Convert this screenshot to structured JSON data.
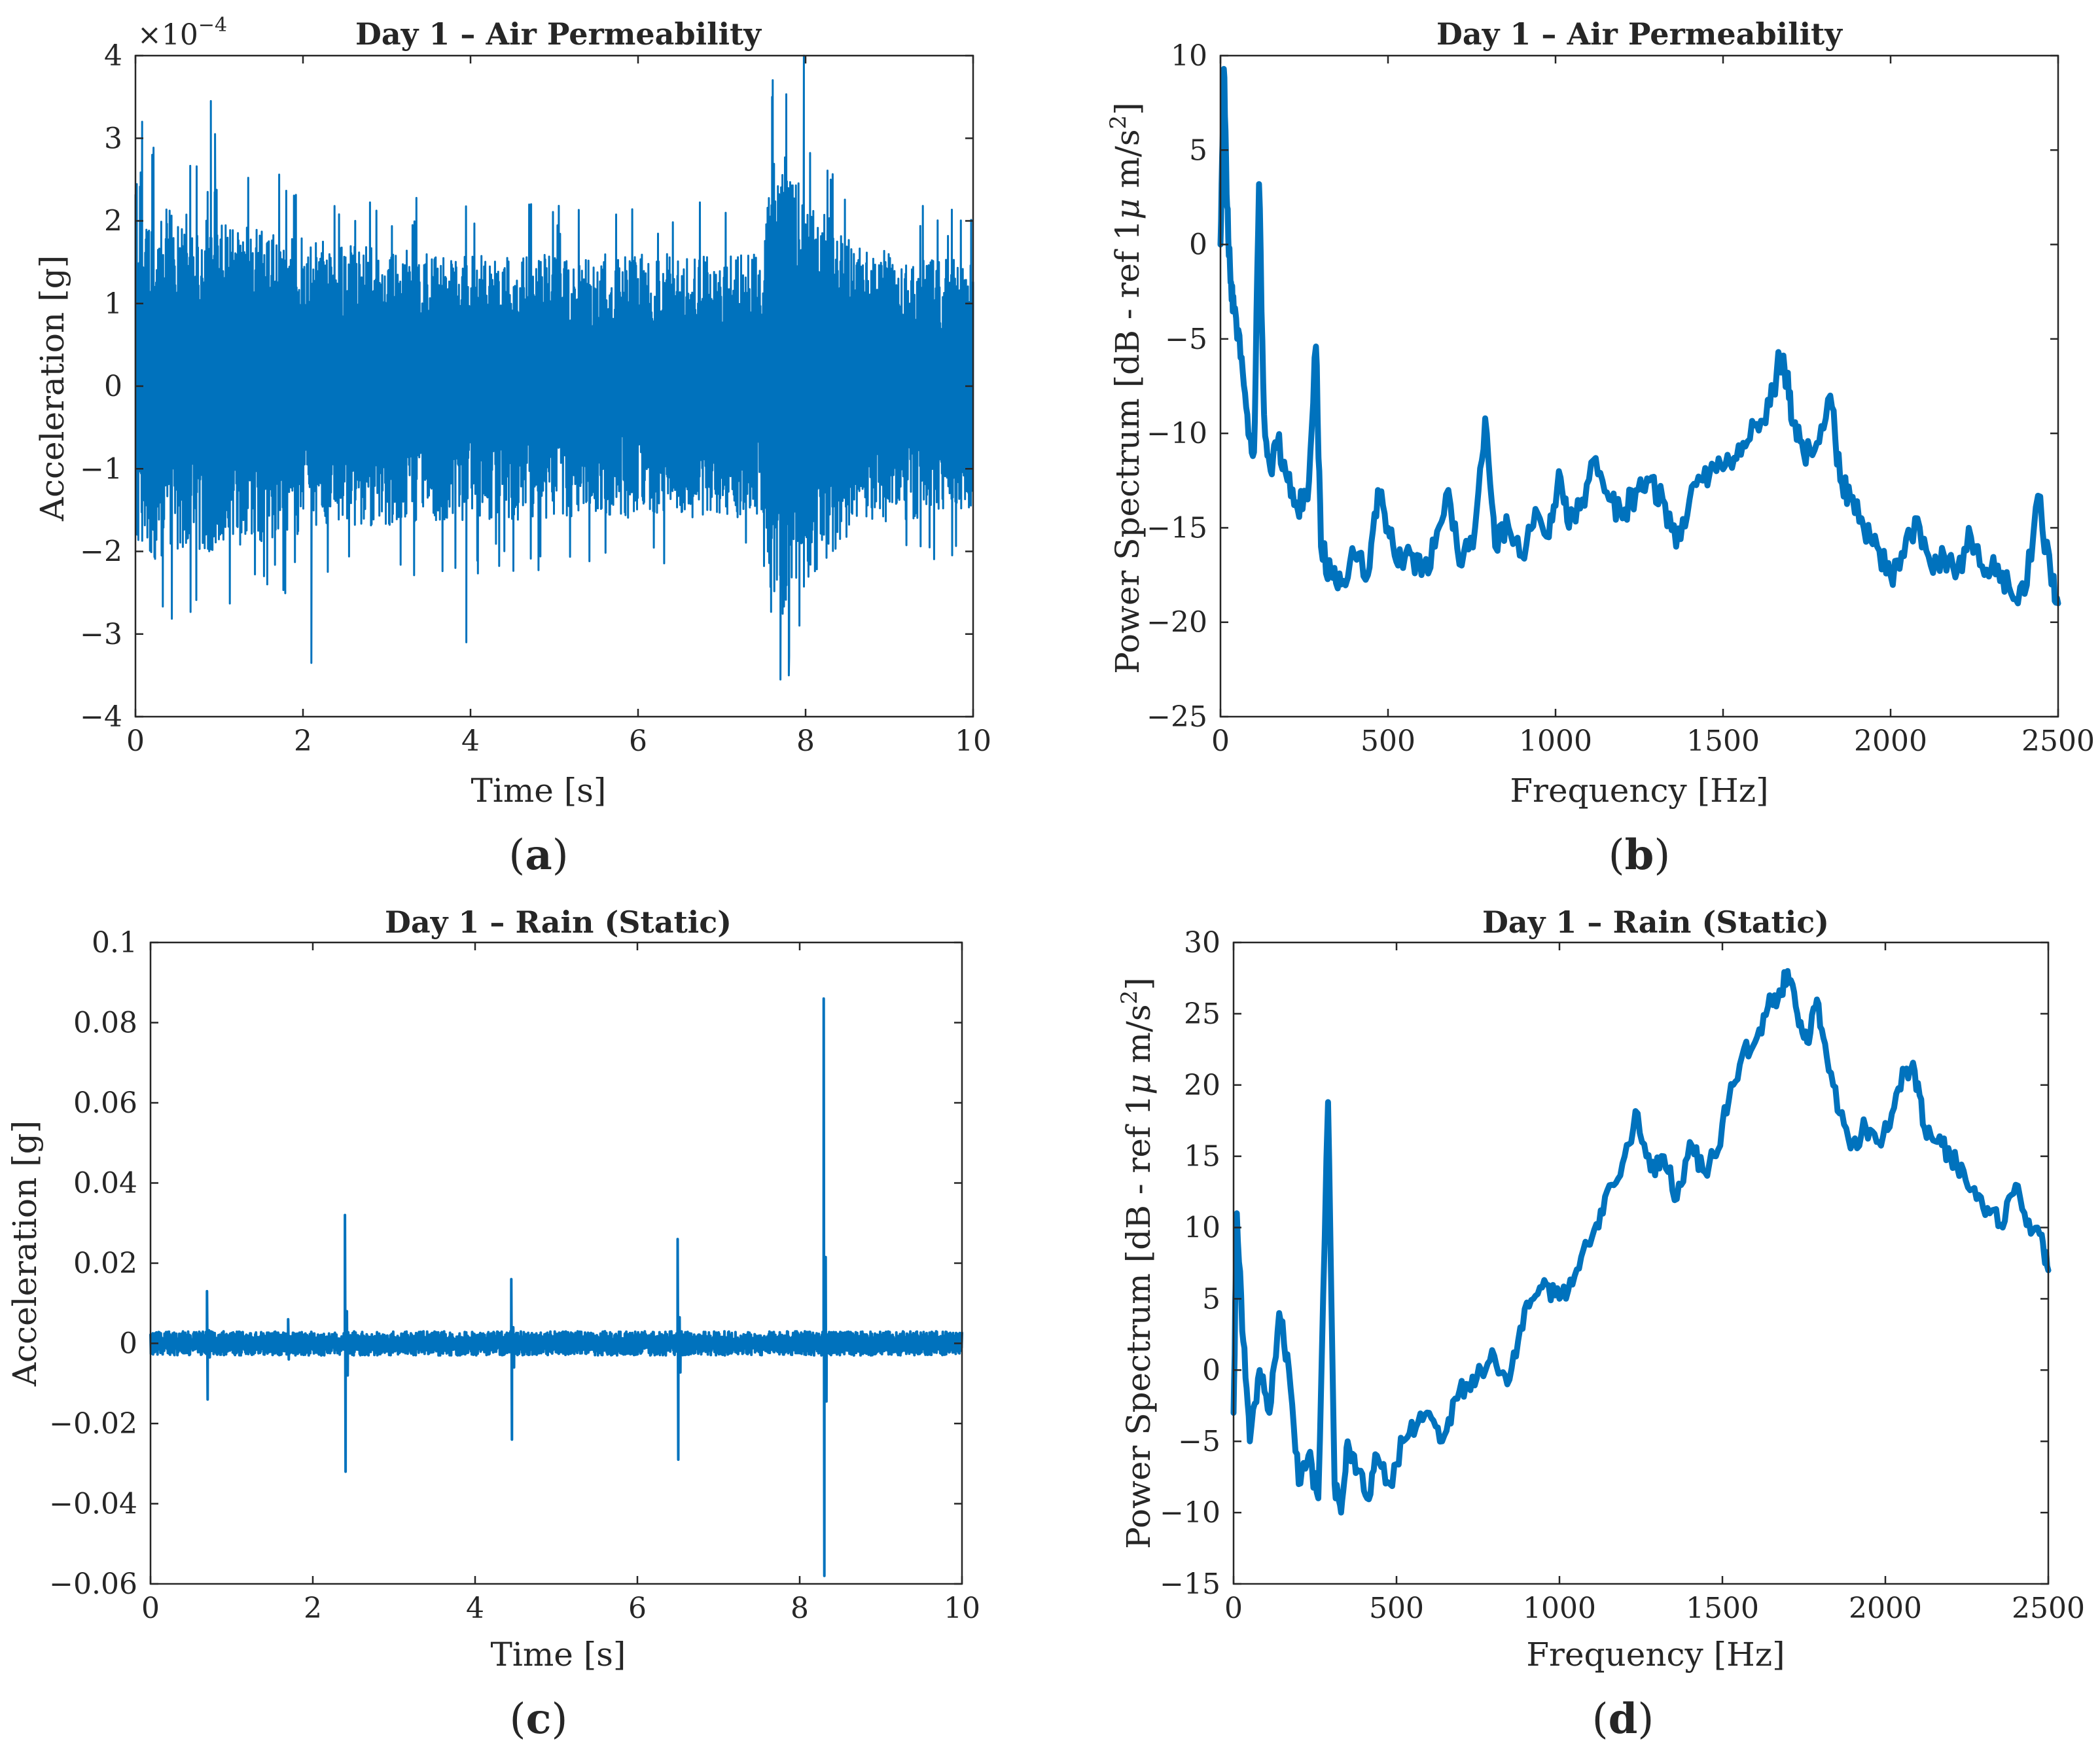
{
  "colors": {
    "series": "#0072BD",
    "axis": "#262626",
    "background": "#ffffff"
  },
  "chart_data": [
    {
      "id": "a",
      "type": "line",
      "panel_label": "a",
      "title": "Day 1 – Air Permeability",
      "xlabel": "Time [s]",
      "ylabel": "Acceleration [g]",
      "y_exponent_prefix": "×10",
      "y_exponent": "−4",
      "xlim": [
        0,
        10
      ],
      "ylim": [
        -4,
        4
      ],
      "xticks": [
        0,
        2,
        4,
        6,
        8,
        10
      ],
      "xtick_labels": [
        "0",
        "2",
        "4",
        "6",
        "8",
        "10"
      ],
      "yticks": [
        -4,
        -3,
        -2,
        -1,
        0,
        1,
        2,
        3,
        4
      ],
      "ytick_labels": [
        "−4",
        "−3",
        "−2",
        "−1",
        "0",
        "1",
        "2",
        "3",
        "4"
      ],
      "series": [
        {
          "name": "acceleration",
          "envelope": [
            [
              0,
              1.8
            ],
            [
              0.2,
              2.2
            ],
            [
              0.9,
              2.0
            ],
            [
              2.5,
              1.7
            ],
            [
              5.0,
              1.6
            ],
            [
              7.5,
              1.6
            ],
            [
              7.6,
              3.0
            ],
            [
              8.0,
              2.4
            ],
            [
              8.6,
              1.7
            ],
            [
              10,
              1.5
            ]
          ],
          "peaks": [
            [
              0.08,
              3.2
            ],
            [
              0.2,
              2.8
            ],
            [
              0.9,
              3.45
            ],
            [
              0.95,
              3.05
            ],
            [
              2.1,
              -3.35
            ],
            [
              3.95,
              -3.1
            ],
            [
              7.6,
              3.5
            ],
            [
              7.7,
              -3.55
            ],
            [
              7.8,
              -3.5
            ],
            [
              7.98,
              4.0
            ],
            [
              8.3,
              2.5
            ]
          ]
        }
      ]
    },
    {
      "id": "b",
      "type": "line",
      "panel_label": "b",
      "title": "Day 1 – Air Permeability",
      "xlabel": "Frequency [Hz]",
      "ylabel": "Power Spectrum [dB - ref 1μ m/s²]",
      "ylabel_parts": [
        "Power Spectrum [dB - ref 1",
        "μ",
        " m/s",
        "2",
        "]"
      ],
      "xlim": [
        0,
        2500
      ],
      "ylim": [
        -25,
        10
      ],
      "xticks": [
        0,
        500,
        1000,
        1500,
        2000,
        2500
      ],
      "xtick_labels": [
        "0",
        "500",
        "1000",
        "1500",
        "2000",
        "2500"
      ],
      "yticks": [
        -25,
        -20,
        -15,
        -10,
        -5,
        0,
        5,
        10
      ],
      "ytick_labels": [
        "−25",
        "−20",
        "−15",
        "−10",
        "−5",
        "0",
        "5",
        "10"
      ],
      "series": [
        {
          "name": "power spectrum",
          "x": [
            0,
            10,
            20,
            30,
            40,
            60,
            80,
            100,
            115,
            130,
            150,
            170,
            200,
            230,
            260,
            285,
            300,
            330,
            360,
            400,
            440,
            470,
            500,
            530,
            560,
            600,
            640,
            680,
            720,
            760,
            790,
            820,
            860,
            900,
            940,
            980,
            1010,
            1040,
            1080,
            1120,
            1160,
            1200,
            1240,
            1280,
            1320,
            1360,
            1400,
            1440,
            1480,
            1520,
            1560,
            1600,
            1640,
            1670,
            1690,
            1710,
            1740,
            1780,
            1820,
            1850,
            1880,
            1920,
            1960,
            2000,
            2040,
            2080,
            2120,
            2160,
            2200,
            2240,
            2280,
            2320,
            2360,
            2400,
            2440,
            2480,
            2500
          ],
          "y": [
            0,
            9.3,
            2,
            -2,
            -3.5,
            -6,
            -9,
            -11,
            3.2,
            -9,
            -12,
            -10.5,
            -12.5,
            -14,
            -13.5,
            -5.4,
            -16,
            -17.5,
            -18,
            -16.5,
            -17.5,
            -13,
            -15,
            -17,
            -16,
            -17.5,
            -16,
            -13,
            -17,
            -15,
            -9.2,
            -16,
            -15,
            -16.5,
            -14,
            -15.5,
            -12,
            -15,
            -13.5,
            -11.3,
            -13.5,
            -14.5,
            -13,
            -12.5,
            -13.5,
            -16,
            -13.5,
            -12.5,
            -12,
            -11.5,
            -10.5,
            -9.5,
            -8.5,
            -6,
            -7,
            -9.5,
            -11,
            -10.5,
            -8,
            -12.5,
            -13.5,
            -15,
            -16,
            -17.5,
            -16.5,
            -14.5,
            -17,
            -16.5,
            -17.2,
            -15.5,
            -17.5,
            -17,
            -18.5,
            -18.5,
            -13.3,
            -18,
            -19
          ]
        }
      ]
    },
    {
      "id": "c",
      "type": "line",
      "panel_label": "c",
      "title": "Day 1 – Rain (Static)",
      "xlabel": "Time [s]",
      "ylabel": "Acceleration [g]",
      "xlim": [
        0,
        10
      ],
      "ylim": [
        -0.06,
        0.1
      ],
      "xticks": [
        0,
        2,
        4,
        6,
        8,
        10
      ],
      "xtick_labels": [
        "0",
        "2",
        "4",
        "6",
        "8",
        "10"
      ],
      "yticks": [
        -0.06,
        -0.04,
        -0.02,
        0,
        0.02,
        0.04,
        0.06,
        0.08,
        0.1
      ],
      "ytick_labels": [
        "−0.06",
        "−0.04",
        "−0.02",
        "0",
        "0.02",
        "0.04",
        "0.06",
        "0.08",
        "0.1"
      ],
      "series": [
        {
          "name": "acceleration",
          "noise_level": 0.0025,
          "spikes": [
            [
              0.7,
              0.013,
              -0.014
            ],
            [
              1.7,
              0.006,
              -0.004
            ],
            [
              2.4,
              0.032,
              -0.032
            ],
            [
              4.45,
              0.016,
              -0.024
            ],
            [
              6.5,
              0.026,
              -0.029
            ],
            [
              8.3,
              0.086,
              -0.058
            ]
          ]
        }
      ]
    },
    {
      "id": "d",
      "type": "line",
      "panel_label": "d",
      "title": "Day 1 – Rain (Static)",
      "xlabel": "Frequency [Hz]",
      "ylabel": "Power Spectrum [dB - ref 1μ m/s²]",
      "ylabel_parts": [
        "Power Spectrum [dB - ref 1",
        "μ",
        " m/s",
        "2",
        "]"
      ],
      "xlim": [
        0,
        2500
      ],
      "ylim": [
        -15,
        30
      ],
      "xticks": [
        0,
        500,
        1000,
        1500,
        2000,
        2500
      ],
      "xtick_labels": [
        "0",
        "500",
        "1000",
        "1500",
        "2000",
        "2500"
      ],
      "yticks": [
        -15,
        -10,
        -5,
        0,
        5,
        10,
        15,
        20,
        25,
        30
      ],
      "ytick_labels": [
        "−15",
        "−10",
        "−5",
        "0",
        "5",
        "10",
        "15",
        "20",
        "25",
        "30"
      ],
      "series": [
        {
          "name": "power spectrum",
          "x": [
            0,
            10,
            30,
            50,
            80,
            110,
            140,
            170,
            200,
            230,
            260,
            290,
            310,
            330,
            350,
            380,
            410,
            440,
            480,
            520,
            560,
            600,
            640,
            680,
            720,
            760,
            800,
            840,
            880,
            920,
            960,
            1000,
            1040,
            1080,
            1120,
            1160,
            1200,
            1240,
            1280,
            1320,
            1360,
            1400,
            1440,
            1480,
            1520,
            1560,
            1600,
            1640,
            1670,
            1700,
            1730,
            1760,
            1790,
            1820,
            1860,
            1900,
            1940,
            1980,
            2020,
            2060,
            2090,
            2120,
            2160,
            2200,
            2240,
            2280,
            2320,
            2360,
            2400,
            2440,
            2480,
            2500
          ],
          "y": [
            -3,
            11,
            2,
            -5,
            0,
            -3,
            4,
            0,
            -8,
            -6,
            -9,
            18.8,
            -8,
            -10,
            -5,
            -7,
            -9,
            -6,
            -8,
            -5,
            -4,
            -3,
            -5,
            -2,
            -1,
            0,
            1,
            -1,
            3,
            5,
            6,
            5,
            6,
            9,
            10,
            13,
            15,
            18,
            14,
            15,
            12,
            16,
            14,
            15,
            19,
            22,
            23,
            25.5,
            26,
            28,
            25,
            23,
            26,
            22,
            18,
            16,
            17,
            16,
            18,
            21,
            21,
            17,
            16,
            15,
            14,
            12,
            11,
            10,
            13,
            10.5,
            9.5,
            7
          ]
        }
      ]
    }
  ]
}
